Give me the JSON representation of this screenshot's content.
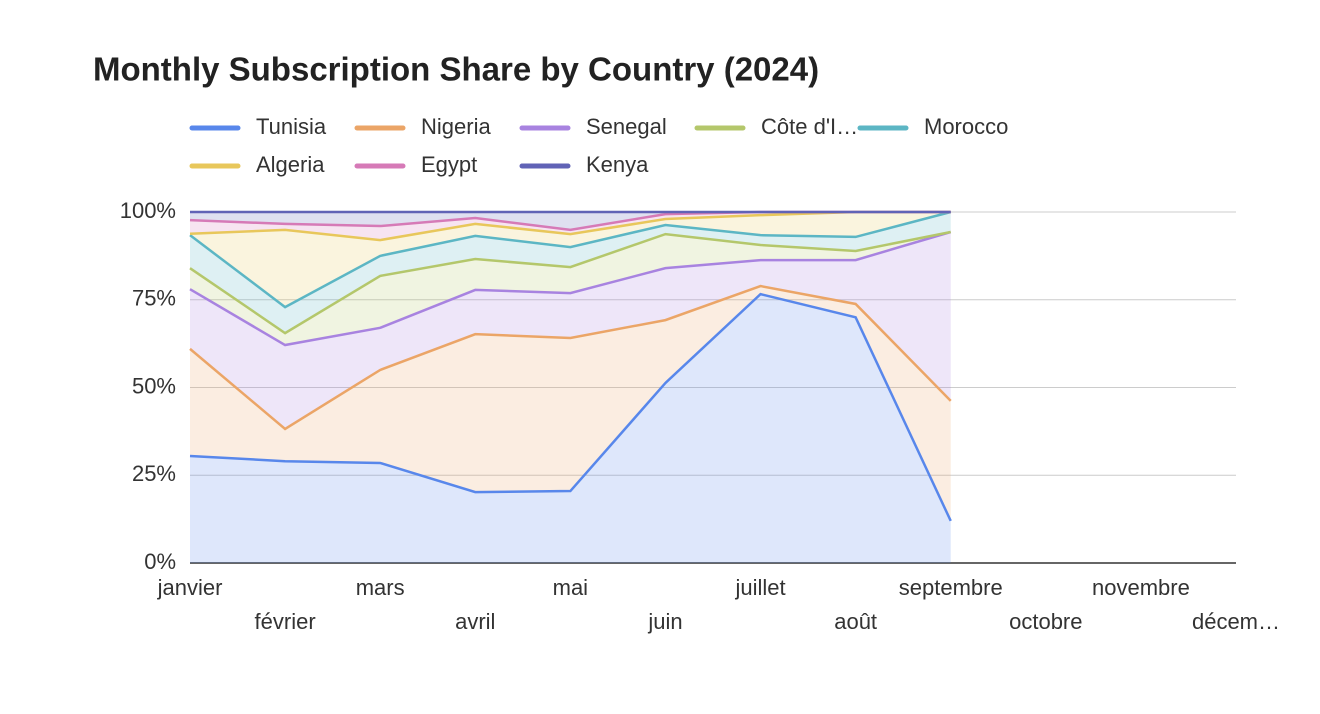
{
  "chart_data": {
    "type": "area",
    "stacked": true,
    "title": "Monthly Subscription Share by Country (2024)",
    "categories": [
      "janvier",
      "février",
      "mars",
      "avril",
      "mai",
      "juin",
      "juillet",
      "août",
      "septembre",
      "octobre",
      "novembre",
      "décem…"
    ],
    "series": [
      {
        "name": "Tunisia",
        "color": "#5887eb",
        "values": [
          30.5,
          29,
          28.5,
          20.2,
          20.5,
          51.3,
          76.6,
          70,
          12,
          null,
          null,
          null
        ]
      },
      {
        "name": "Nigeria",
        "color": "#eba567",
        "values": [
          30.5,
          9.2,
          26.5,
          45,
          43.6,
          17.9,
          2.3,
          3.8,
          34.2,
          null,
          null,
          null
        ]
      },
      {
        "name": "Senegal",
        "color": "#a883e0",
        "values": [
          17,
          23.9,
          12,
          12.6,
          12.8,
          14.8,
          7.4,
          12.5,
          48.1,
          null,
          null,
          null
        ]
      },
      {
        "name": "Côte d'I…",
        "color": "#b4c76b",
        "values": [
          6,
          3.4,
          14.8,
          8.8,
          7.4,
          9.7,
          4.3,
          2.6,
          0,
          null,
          null,
          null
        ]
      },
      {
        "name": "Morocco",
        "color": "#5cb6c4",
        "values": [
          9.4,
          7.4,
          5.7,
          6.6,
          5.7,
          2.6,
          2.8,
          4,
          5.7,
          null,
          null,
          null
        ]
      },
      {
        "name": "Algeria",
        "color": "#e8c75b",
        "values": [
          0.4,
          22,
          4.5,
          3.4,
          3.7,
          1.7,
          5.7,
          7.1,
          0,
          null,
          null,
          null
        ]
      },
      {
        "name": "Egypt",
        "color": "#d67ab7",
        "values": [
          3.9,
          1.7,
          4,
          1.7,
          1.2,
          1.4,
          0.9,
          0,
          0,
          null,
          null,
          null
        ]
      },
      {
        "name": "Kenya",
        "color": "#6163b6",
        "values": [
          2.3,
          3.4,
          4,
          1.7,
          5.1,
          0.6,
          0,
          0,
          0,
          null,
          null,
          null
        ]
      }
    ],
    "ylim": [
      0,
      100
    ],
    "yticks": [
      {
        "value": 0,
        "label": "0%"
      },
      {
        "value": 25,
        "label": "25%"
      },
      {
        "value": 50,
        "label": "50%"
      },
      {
        "value": 75,
        "label": "75%"
      },
      {
        "value": 100,
        "label": "100%"
      }
    ],
    "grid": true,
    "legend": "top"
  }
}
